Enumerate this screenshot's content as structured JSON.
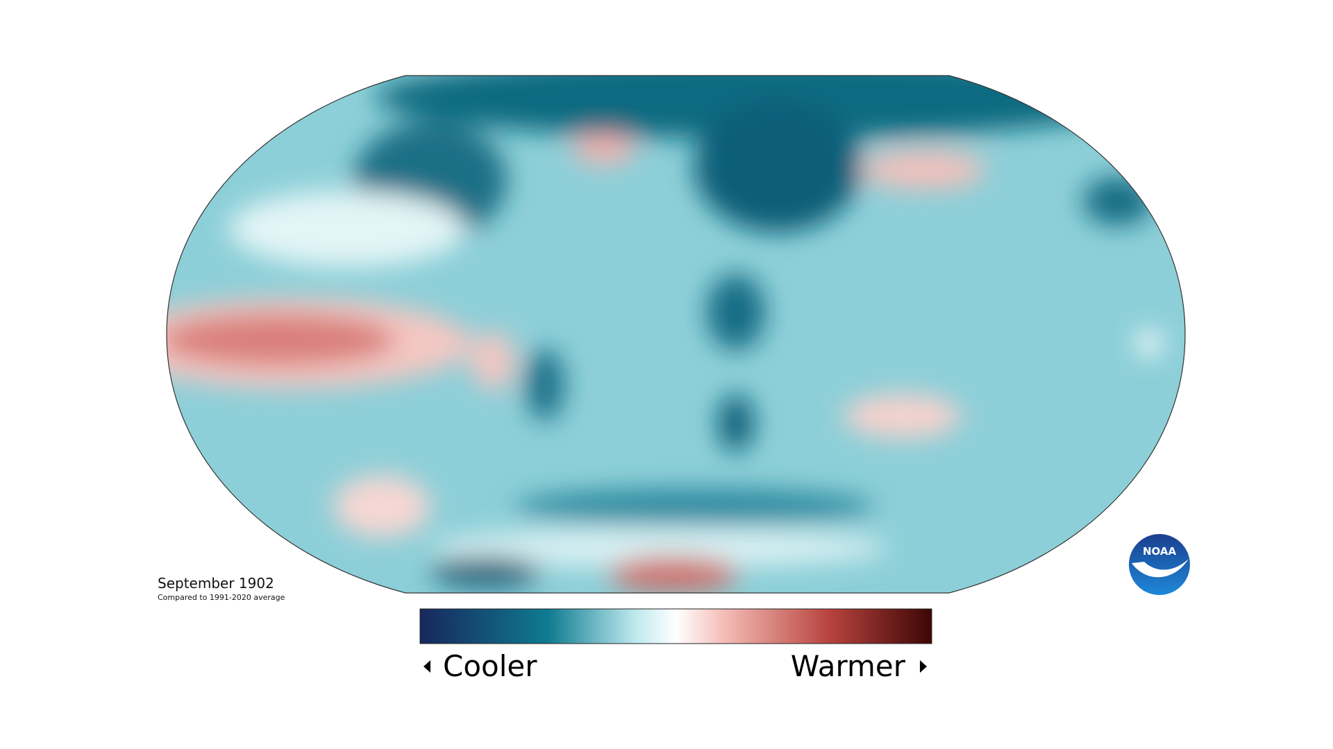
{
  "map": {
    "title": "September 1902",
    "subtitle": "Compared to 1991-2020 average"
  },
  "legend": {
    "low_label": "Cooler",
    "high_label": "Warmer"
  },
  "logo": {
    "text": "NOAA"
  }
}
